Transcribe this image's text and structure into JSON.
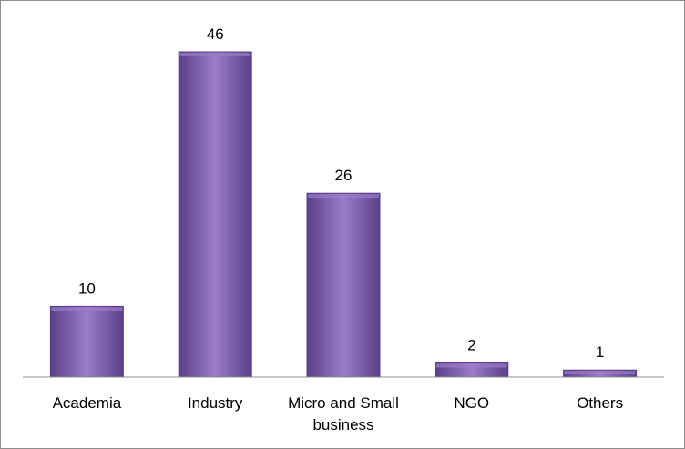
{
  "chart_data": {
    "type": "bar",
    "title": "",
    "xlabel": "",
    "ylabel": "",
    "categories": [
      "Academia",
      "Industry",
      "Micro and Small business",
      "NGO",
      "Others"
    ],
    "category_lines": [
      [
        "Academia"
      ],
      [
        "Industry"
      ],
      [
        "Micro and Small",
        "business"
      ],
      [
        "NGO"
      ],
      [
        "Others"
      ]
    ],
    "values": [
      10,
      46,
      26,
      2,
      1
    ],
    "ylim": [
      0,
      46
    ],
    "grid": false,
    "legend": "none",
    "bar_color": "#7a5aa8",
    "bar_color_light": "#9a7cc8",
    "bar_color_dark": "#5b3f88",
    "axis_color": "#8c8c8c"
  }
}
